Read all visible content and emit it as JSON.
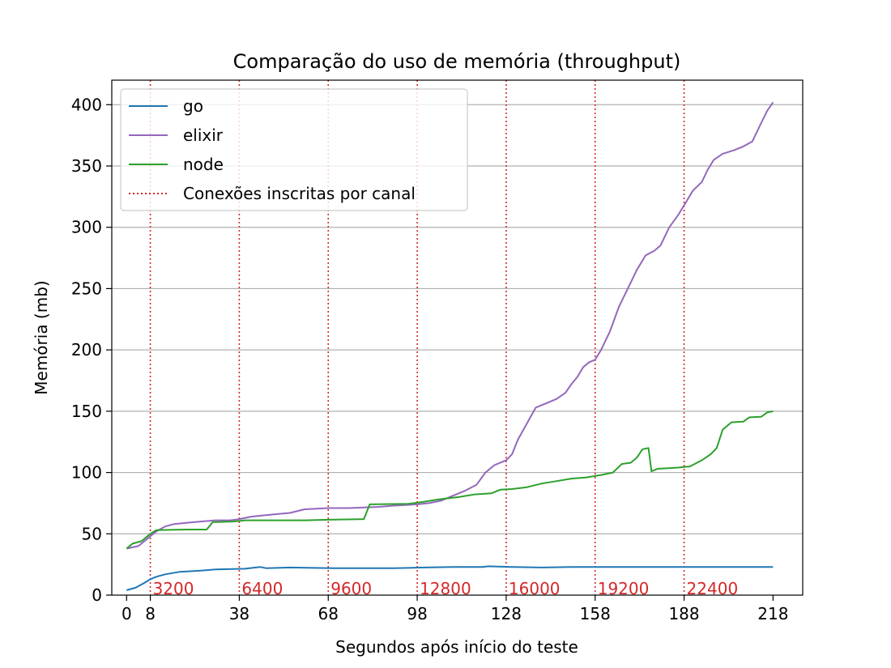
{
  "chart_data": {
    "type": "line",
    "title": "Comparação do uso de memória (throughput)",
    "xlabel": "Segundos após início do teste",
    "ylabel": "Memória (mb)",
    "xlim": [
      -5,
      228
    ],
    "ylim": [
      0,
      420
    ],
    "xticks": [
      0,
      8,
      38,
      68,
      98,
      128,
      158,
      188,
      218
    ],
    "yticks": [
      0,
      50,
      100,
      150,
      200,
      250,
      300,
      350,
      400
    ],
    "grid": "horizontal",
    "legend_position": "top-left",
    "series": [
      {
        "name": "go",
        "color": "#1f77b4",
        "points": [
          [
            0,
            4
          ],
          [
            3,
            6
          ],
          [
            6,
            10
          ],
          [
            8,
            13
          ],
          [
            10,
            15
          ],
          [
            13,
            17
          ],
          [
            18,
            19
          ],
          [
            25,
            20
          ],
          [
            30,
            21
          ],
          [
            40,
            21.5
          ],
          [
            45,
            23
          ],
          [
            47,
            22
          ],
          [
            55,
            22.5
          ],
          [
            70,
            22
          ],
          [
            90,
            22
          ],
          [
            100,
            22.5
          ],
          [
            110,
            23
          ],
          [
            120,
            23
          ],
          [
            122,
            23.5
          ],
          [
            130,
            23
          ],
          [
            140,
            22.5
          ],
          [
            150,
            23
          ],
          [
            158,
            23
          ],
          [
            170,
            23
          ],
          [
            180,
            23
          ],
          [
            190,
            23
          ],
          [
            200,
            23
          ],
          [
            210,
            23
          ],
          [
            218,
            23
          ]
        ]
      },
      {
        "name": "elixir",
        "color": "#9467bd",
        "points": [
          [
            0,
            38
          ],
          [
            4,
            40
          ],
          [
            7,
            46
          ],
          [
            10,
            52
          ],
          [
            13,
            56
          ],
          [
            16,
            58
          ],
          [
            20,
            59
          ],
          [
            25,
            60
          ],
          [
            30,
            61
          ],
          [
            35,
            61
          ],
          [
            38,
            62
          ],
          [
            42,
            64
          ],
          [
            50,
            66
          ],
          [
            55,
            67
          ],
          [
            60,
            70
          ],
          [
            68,
            71
          ],
          [
            75,
            71
          ],
          [
            85,
            72
          ],
          [
            90,
            73
          ],
          [
            98,
            74
          ],
          [
            102,
            75
          ],
          [
            106,
            77
          ],
          [
            110,
            81
          ],
          [
            114,
            85
          ],
          [
            118,
            90
          ],
          [
            121,
            100
          ],
          [
            124,
            106
          ],
          [
            128,
            110
          ],
          [
            130,
            115
          ],
          [
            132,
            127
          ],
          [
            135,
            140
          ],
          [
            138,
            153
          ],
          [
            142,
            157
          ],
          [
            145,
            160
          ],
          [
            148,
            165
          ],
          [
            150,
            172
          ],
          [
            152,
            178
          ],
          [
            154,
            186
          ],
          [
            156,
            190
          ],
          [
            158,
            192
          ],
          [
            160,
            200
          ],
          [
            163,
            215
          ],
          [
            166,
            235
          ],
          [
            170,
            255
          ],
          [
            172,
            265
          ],
          [
            175,
            277
          ],
          [
            178,
            281
          ],
          [
            180,
            285
          ],
          [
            183,
            300
          ],
          [
            186,
            310
          ],
          [
            188,
            318
          ],
          [
            191,
            330
          ],
          [
            194,
            337
          ],
          [
            196,
            347
          ],
          [
            198,
            355
          ],
          [
            201,
            360
          ],
          [
            205,
            363
          ],
          [
            208,
            366
          ],
          [
            211,
            370
          ],
          [
            214,
            385
          ],
          [
            216,
            395
          ],
          [
            218,
            402
          ]
        ]
      },
      {
        "name": "node",
        "color": "#2ca02c",
        "points": [
          [
            0,
            38
          ],
          [
            2,
            42
          ],
          [
            5,
            44
          ],
          [
            8,
            50
          ],
          [
            10,
            53
          ],
          [
            20,
            53.5
          ],
          [
            27,
            53.5
          ],
          [
            29,
            59.5
          ],
          [
            36,
            60
          ],
          [
            40,
            61
          ],
          [
            60,
            61
          ],
          [
            68,
            61.5
          ],
          [
            80,
            62
          ],
          [
            82,
            74
          ],
          [
            95,
            74.5
          ],
          [
            100,
            76
          ],
          [
            105,
            78
          ],
          [
            112,
            80
          ],
          [
            117,
            82
          ],
          [
            123,
            83
          ],
          [
            126,
            86
          ],
          [
            130,
            86.5
          ],
          [
            135,
            88
          ],
          [
            140,
            91
          ],
          [
            145,
            93
          ],
          [
            150,
            95
          ],
          [
            155,
            96
          ],
          [
            160,
            98
          ],
          [
            164,
            100
          ],
          [
            167,
            107
          ],
          [
            170,
            108
          ],
          [
            172,
            112
          ],
          [
            174,
            119
          ],
          [
            176,
            120
          ],
          [
            177,
            101
          ],
          [
            179,
            103
          ],
          [
            186,
            104
          ],
          [
            190,
            105
          ],
          [
            194,
            110
          ],
          [
            197,
            115
          ],
          [
            199,
            120
          ],
          [
            201,
            135
          ],
          [
            204,
            141
          ],
          [
            208,
            141.5
          ],
          [
            210,
            145
          ],
          [
            214,
            145.5
          ],
          [
            216,
            149
          ],
          [
            218,
            150
          ]
        ]
      }
    ],
    "markers": {
      "name": "Conexões inscritas por canal",
      "color": "#d62728",
      "x": [
        8,
        38,
        68,
        98,
        128,
        158,
        188
      ],
      "labels": [
        "3200",
        "6400",
        "9600",
        "12800",
        "16000",
        "19200",
        "22400"
      ]
    }
  }
}
